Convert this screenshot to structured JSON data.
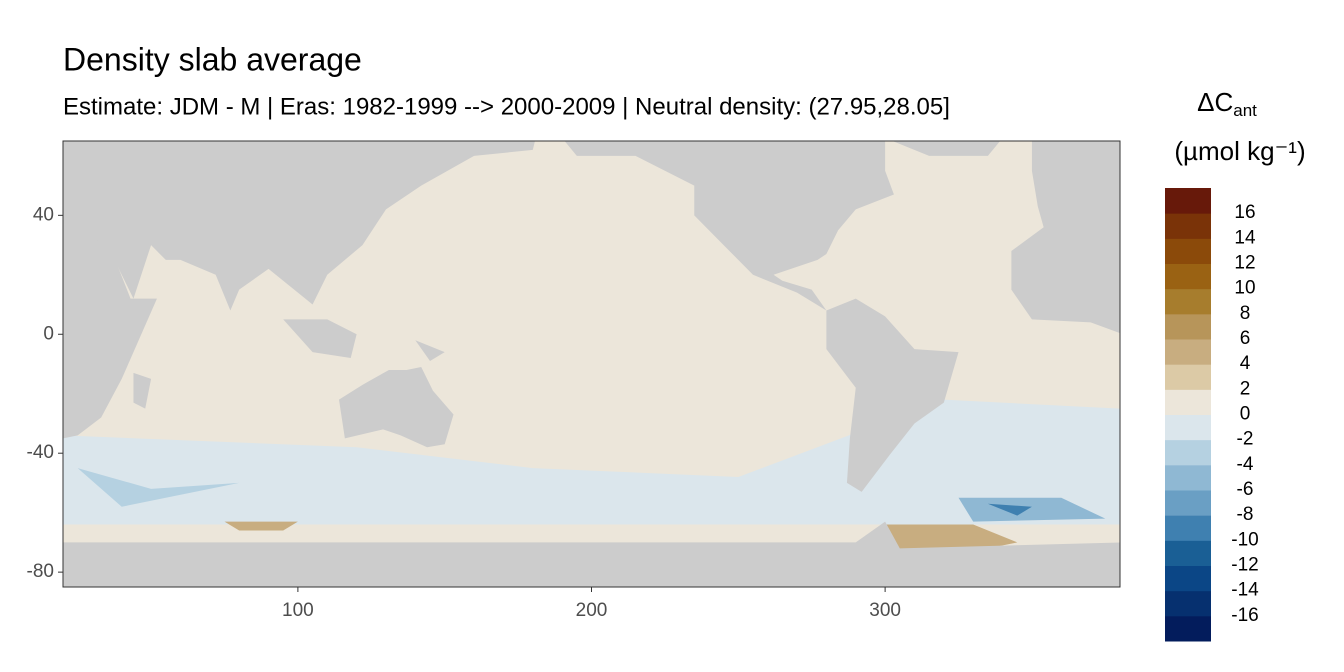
{
  "chart_data": {
    "type": "raster-map",
    "title": "Density slab average",
    "subtitle": "Estimate: JDM - M | Eras: 1982-1999 --> 2000-2009 | Neutral density: (27.95,28.05]",
    "xlim": [
      20,
      380
    ],
    "xticks": [
      100,
      200,
      300
    ],
    "ylim": [
      -85,
      65
    ],
    "yticks": [
      40,
      0,
      -40,
      -80
    ],
    "legend": {
      "title": "ΔC",
      "title_sub": "ant",
      "unit": "(µmol kg⁻¹)",
      "lim": [
        -18,
        18
      ],
      "breaks": [
        -16,
        -14,
        -12,
        -10,
        -8,
        -6,
        -4,
        -2,
        0,
        2,
        4,
        6,
        8,
        10,
        12,
        14,
        16
      ],
      "colors": [
        "#031c5c",
        "#06306f",
        "#0b4686",
        "#1a5f95",
        "#3f80b0",
        "#6a9fc4",
        "#8fb8d3",
        "#b5d1e1",
        "#dbe6ec",
        "#ece6da",
        "#dccaa6",
        "#c8ad80",
        "#b7955a",
        "#a77d2d",
        "#9a6213",
        "#8b4a0a",
        "#7a3308",
        "#67190a"
      ]
    }
  }
}
